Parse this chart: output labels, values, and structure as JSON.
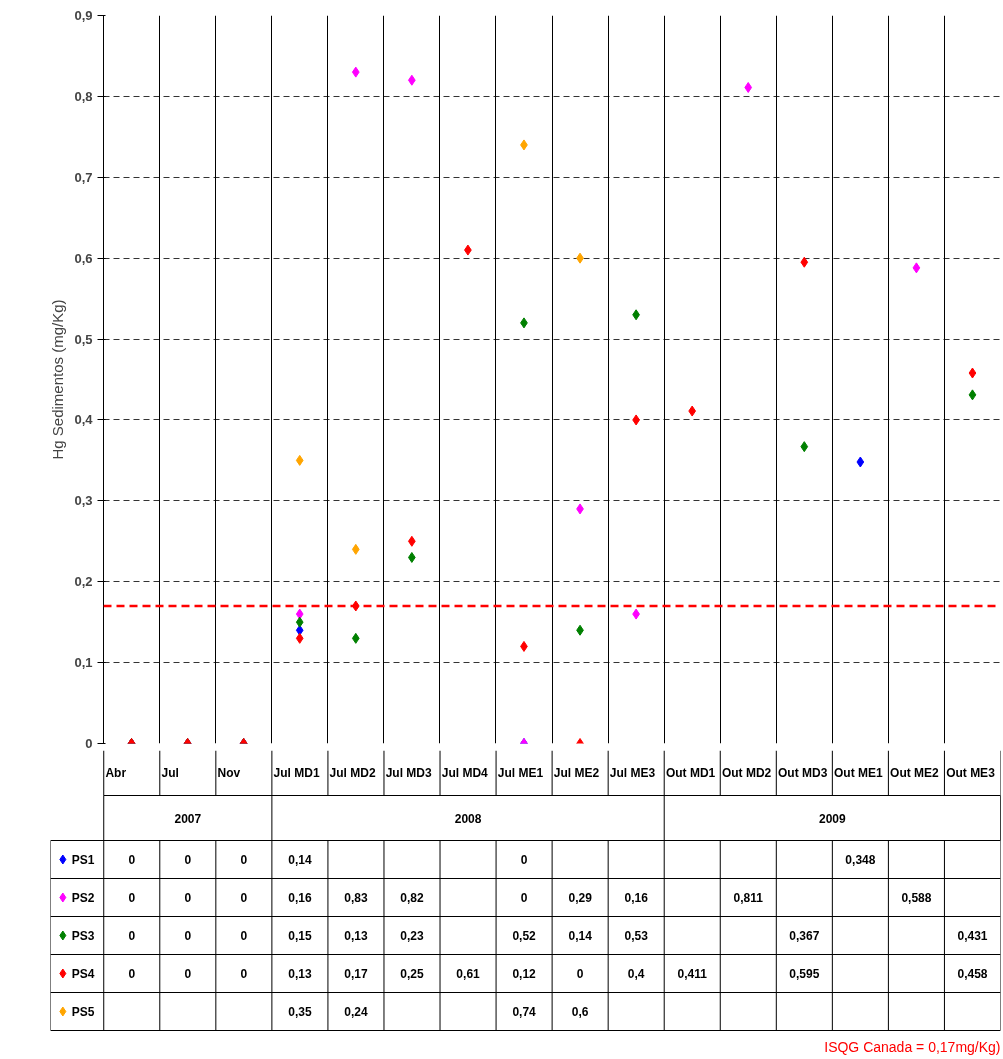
{
  "chart_data": {
    "type": "scatter",
    "ylabel": "Hg Sedimentos (mg/Kg)",
    "categories": [
      "Abr",
      "Jul",
      "Nov",
      "Jul MD1",
      "Jul MD2",
      "Jul MD3",
      "Jul MD4",
      "Jul ME1",
      "Jul ME2",
      "Jul ME3",
      "Out MD1",
      "Out MD2",
      "Out MD3",
      "Out ME1",
      "Out ME2",
      "Out ME3"
    ],
    "ylim": [
      0,
      0.9
    ],
    "yticks": [
      0,
      {
        "value": 0.1,
        "label": "0,1"
      },
      {
        "value": 0.2,
        "label": "0,2"
      },
      {
        "value": 0.3,
        "label": "0,3"
      },
      {
        "value": 0.4,
        "label": "0,4"
      },
      {
        "value": 0.5,
        "label": "0,5"
      },
      {
        "value": 0.6,
        "label": "0,6"
      },
      {
        "value": 0.7,
        "label": "0,7"
      },
      {
        "value": 0.8,
        "label": "0,8"
      },
      {
        "value": 0.9,
        "label": "0,9"
      }
    ],
    "grid": true,
    "marker": "diamond",
    "legend": "bottom",
    "series": [
      {
        "name": "PS1",
        "color": "#0000ff",
        "values": [
          0,
          0,
          0,
          0.14,
          null,
          null,
          null,
          0,
          null,
          null,
          null,
          null,
          null,
          0.348,
          null,
          null
        ],
        "value_labels": [
          "0",
          "0",
          "0",
          "0,14",
          null,
          null,
          null,
          "0",
          null,
          null,
          null,
          null,
          null,
          "0,348",
          null,
          null
        ]
      },
      {
        "name": "PS2",
        "color": "#ff00ff",
        "values": [
          0,
          0,
          0,
          0.16,
          0.83,
          0.82,
          null,
          0,
          0.29,
          0.16,
          null,
          0.811,
          null,
          null,
          0.588,
          null
        ],
        "value_labels": [
          "0",
          "0",
          "0",
          "0,16",
          "0,83",
          "0,82",
          null,
          "0",
          "0,29",
          "0,16",
          null,
          "0,811",
          null,
          null,
          "0,588",
          null
        ]
      },
      {
        "name": "PS3",
        "color": "#008000",
        "values": [
          0,
          0,
          0,
          0.15,
          0.13,
          0.23,
          null,
          0.52,
          0.14,
          0.53,
          null,
          null,
          0.367,
          null,
          null,
          0.431
        ],
        "value_labels": [
          "0",
          "0",
          "0",
          "0,15",
          "0,13",
          "0,23",
          null,
          "0,52",
          "0,14",
          "0,53",
          null,
          null,
          "0,367",
          null,
          null,
          "0,431"
        ]
      },
      {
        "name": "PS4",
        "color": "#ff0000",
        "values": [
          0,
          0,
          0,
          0.13,
          0.17,
          0.25,
          0.61,
          0.12,
          0,
          0.4,
          0.411,
          null,
          0.595,
          null,
          null,
          0.458
        ],
        "value_labels": [
          "0",
          "0",
          "0",
          "0,13",
          "0,17",
          "0,25",
          "0,61",
          "0,12",
          "0",
          "0,4",
          "0,411",
          null,
          "0,595",
          null,
          null,
          "0,458"
        ]
      },
      {
        "name": "PS5",
        "color": "#ffa500",
        "values": [
          null,
          null,
          null,
          0.35,
          0.24,
          null,
          null,
          0.74,
          0.6,
          null,
          null,
          null,
          null,
          null,
          null,
          null
        ],
        "value_labels": [
          null,
          null,
          null,
          "0,35",
          "0,24",
          null,
          null,
          "0,74",
          "0,6",
          null,
          null,
          null,
          null,
          null,
          null,
          null
        ]
      }
    ],
    "ref_lines": [
      {
        "axis": "y",
        "value": 0.17,
        "color": "#ff0000",
        "line_style": "dashed"
      }
    ],
    "annotations": [
      "2007",
      "2008",
      "2009",
      "ISQG Canada = 0,17mg/Kg)"
    ]
  }
}
